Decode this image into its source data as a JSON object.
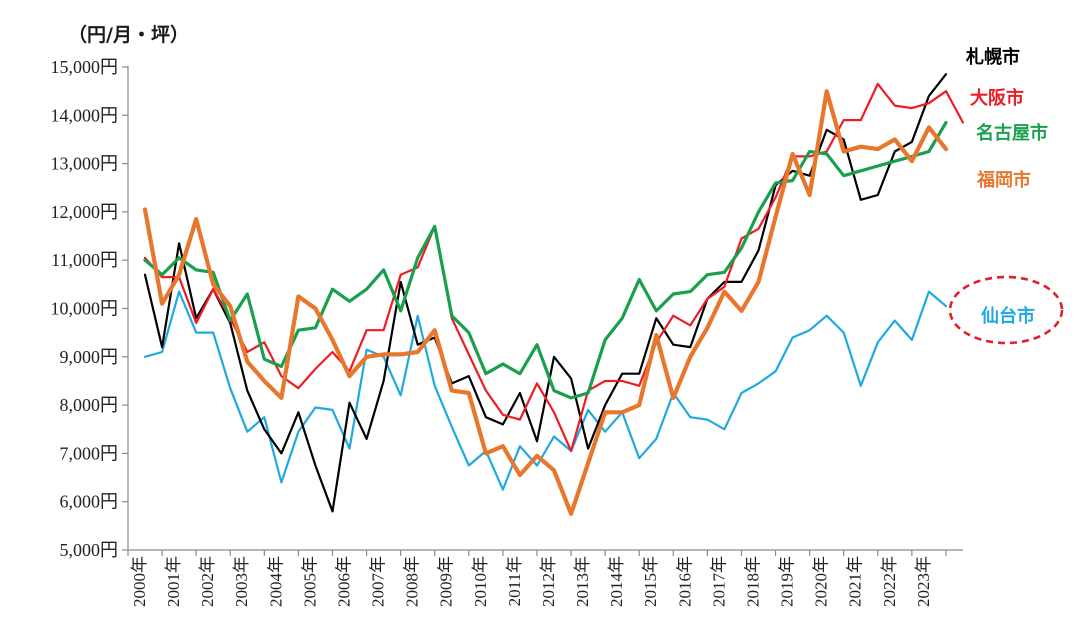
{
  "chart_data": {
    "type": "line",
    "unit_label": "（円/月・坪）",
    "ylim": [
      5000,
      15000
    ],
    "yticks": [
      5000,
      6000,
      7000,
      8000,
      9000,
      10000,
      11000,
      12000,
      13000,
      14000,
      15000
    ],
    "ytick_labels": [
      "5,000円",
      "6,000円",
      "7,000円",
      "8,000円",
      "9,000円",
      "10,000円",
      "11,000円",
      "12,000円",
      "13,000円",
      "14,000円",
      "15,000円"
    ],
    "x_start": 2000.0,
    "x_end": 2024.5,
    "x_step": 0.5,
    "xtick_years": [
      2000,
      2001,
      2002,
      2003,
      2004,
      2005,
      2006,
      2007,
      2008,
      2009,
      2010,
      2011,
      2012,
      2013,
      2014,
      2015,
      2016,
      2017,
      2018,
      2019,
      2020,
      2021,
      2022,
      2023
    ],
    "xtick_labels": [
      "2000年",
      "2001年",
      "2002年",
      "2003年",
      "2004年",
      "2005年",
      "2006年",
      "2007年",
      "2008年",
      "2009年",
      "2010年",
      "2011年",
      "2012年",
      "2013年",
      "2014年",
      "2015年",
      "2016年",
      "2017年",
      "2018年",
      "2019年",
      "2020年",
      "2021年",
      "2022年",
      "2023年"
    ],
    "grid": false,
    "series": [
      {
        "name": "札幌市",
        "color": "#000000",
        "width": 2.2,
        "values": [
          10700,
          9200,
          11350,
          9800,
          10400,
          9700,
          8300,
          7500,
          7000,
          7850,
          6750,
          5800,
          8050,
          7300,
          8500,
          10550,
          9250,
          9400,
          8450,
          8600,
          7750,
          7600,
          8250,
          7250,
          9000,
          8550,
          7100,
          8000,
          8650,
          8650,
          9800,
          9250,
          9200,
          10200,
          10550,
          10550,
          11200,
          12550,
          12850,
          12750,
          13700,
          13500,
          12250,
          12350,
          13250,
          13450,
          14400,
          14850
        ]
      },
      {
        "name": "大阪市",
        "color": "#ee1c25",
        "width": 2.2,
        "values": [
          11050,
          10650,
          10650,
          9700,
          10400,
          9800,
          9100,
          9300,
          8600,
          8350,
          8750,
          9100,
          8700,
          9550,
          9550,
          10700,
          10850,
          11700,
          9800,
          9050,
          8300,
          7800,
          7700,
          8450,
          7850,
          7050,
          8300,
          8500,
          8500,
          8400,
          9300,
          9850,
          9650,
          10200,
          10450,
          11450,
          11650,
          12300,
          13150,
          13150,
          13250,
          13900,
          13900,
          14650,
          14200,
          14150,
          14250,
          14500,
          13850
        ]
      },
      {
        "name": "名古屋市",
        "color": "#18a04c",
        "width": 3.2,
        "values": [
          11000,
          10700,
          11050,
          10800,
          10750,
          9750,
          10300,
          8950,
          8800,
          9550,
          9600,
          10400,
          10150,
          10400,
          10800,
          9950,
          11050,
          11700,
          9850,
          9500,
          8650,
          8850,
          8650,
          9250,
          8300,
          8150,
          8250,
          9350,
          9800,
          10600,
          9950,
          10300,
          10350,
          10700,
          10750,
          11250,
          12000,
          12600,
          12650,
          13250,
          13200,
          12750,
          12850,
          12950,
          13050,
          13150,
          13250,
          13850
        ]
      },
      {
        "name": "福岡市",
        "color": "#e8772e",
        "width": 4.2,
        "values": [
          12050,
          10100,
          10700,
          11850,
          10500,
          10050,
          8900,
          8500,
          8150,
          10250,
          10000,
          9350,
          8600,
          9000,
          9050,
          9050,
          9100,
          9550,
          8300,
          8250,
          7000,
          7150,
          6550,
          6950,
          6650,
          5750,
          6800,
          7850,
          7850,
          8000,
          9450,
          8150,
          9000,
          9600,
          10350,
          9950,
          10550,
          11900,
          13200,
          12350,
          14500,
          13250,
          13350,
          13300,
          13500,
          13050,
          13750,
          13300
        ]
      },
      {
        "name": "仙台市",
        "color": "#20a9e1",
        "width": 2.2,
        "values": [
          9000,
          9100,
          10350,
          9500,
          9500,
          8350,
          7450,
          7750,
          6400,
          7450,
          7950,
          7900,
          7100,
          9150,
          9000,
          8200,
          9850,
          8400,
          7550,
          6750,
          7050,
          6250,
          7150,
          6750,
          7350,
          7050,
          7900,
          7450,
          7850,
          6900,
          7300,
          8250,
          7750,
          7700,
          7500,
          8250,
          8450,
          8700,
          9400,
          9550,
          9850,
          9500,
          8400,
          9300,
          9750,
          9350,
          10350,
          10050
        ]
      }
    ]
  }
}
